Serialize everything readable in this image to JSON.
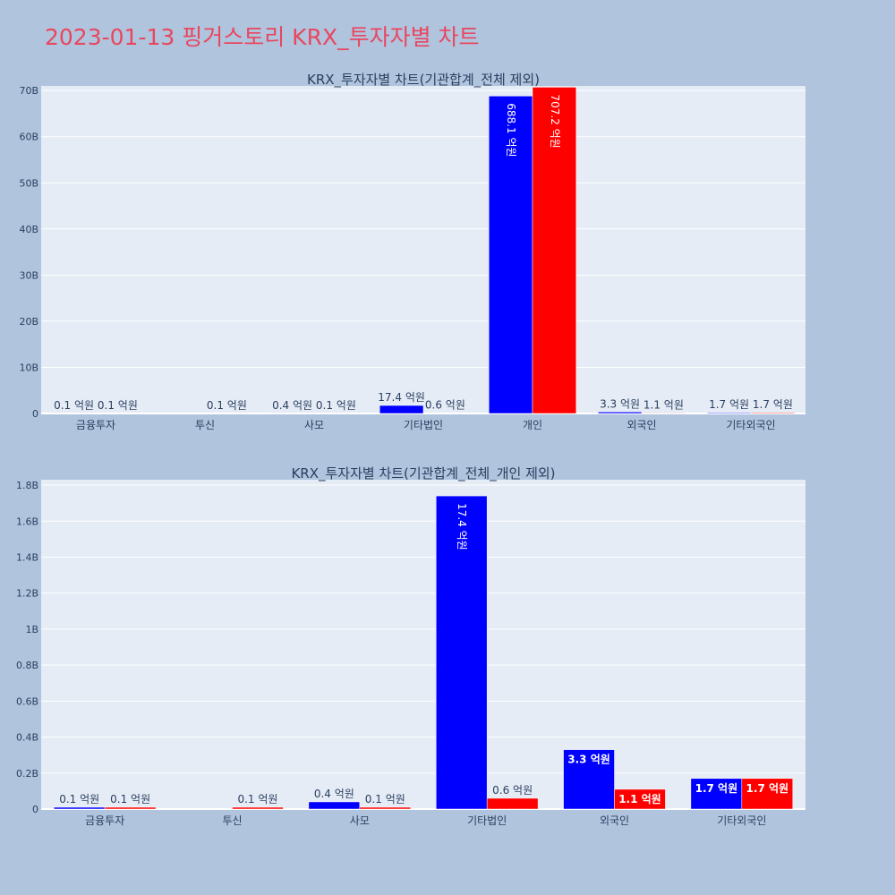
{
  "page": {
    "title": "2023-01-13 핑거스토리 KRX_투자자별 차트"
  },
  "colors": {
    "buy": "#0000ff",
    "sell": "#ff0000",
    "plot_bg": "#e5ecf6",
    "page_bg": "#b0c4de",
    "title": "#e8475f"
  },
  "chart_data": [
    {
      "type": "bar",
      "title": "KRX_투자자별 차트(기관합계_전체 제외)",
      "categories": [
        "금융투자",
        "투신",
        "사모",
        "기타법인",
        "개인",
        "외국인",
        "기타외국인"
      ],
      "series": [
        {
          "color": "#0000ff",
          "values": [
            10000000,
            0,
            40000000,
            1740000000,
            68810000000,
            330000000,
            170000000
          ],
          "labels": [
            "0.1 억원",
            "",
            "0.4 억원",
            "17.4 억원",
            "688.1 억원",
            "3.3 억원",
            "1.7 억원"
          ]
        },
        {
          "color": "#ff0000",
          "values": [
            10000000,
            10000000,
            10000000,
            60000000,
            70720000000,
            110000000,
            170000000
          ],
          "labels": [
            "0.1 억원",
            "0.1 억원",
            "0.1 억원",
            "0.6 억원",
            "707.2 억원",
            "1.1 억원",
            "1.7 억원"
          ]
        }
      ],
      "ylim": [
        0,
        71000000000
      ],
      "yticks": [
        0,
        10000000000,
        20000000000,
        30000000000,
        40000000000,
        50000000000,
        60000000000,
        70000000000
      ],
      "yticklabels": [
        "0",
        "10B",
        "20B",
        "30B",
        "40B",
        "50B",
        "60B",
        "70B"
      ],
      "grid": true
    },
    {
      "type": "bar",
      "title": "KRX_투자자별 차트(기관합계_전체_개인 제외)",
      "categories": [
        "금융투자",
        "투신",
        "사모",
        "기타법인",
        "외국인",
        "기타외국인"
      ],
      "series": [
        {
          "color": "#0000ff",
          "values": [
            10000000,
            0,
            40000000,
            1740000000,
            330000000,
            170000000
          ],
          "labels": [
            "0.1 억원",
            "",
            "0.4 억원",
            "17.4 억원",
            "3.3 억원",
            "1.7 억원"
          ]
        },
        {
          "color": "#ff0000",
          "values": [
            10000000,
            10000000,
            10000000,
            60000000,
            110000000,
            170000000
          ],
          "labels": [
            "0.1 억원",
            "0.1 억원",
            "0.1 억원",
            "0.6 억원",
            "1.1 억원",
            "1.7 억원"
          ]
        }
      ],
      "ylim": [
        0,
        1830000000
      ],
      "yticks": [
        0,
        200000000,
        400000000,
        600000000,
        800000000,
        1000000000,
        1200000000,
        1400000000,
        1600000000,
        1800000000
      ],
      "yticklabels": [
        "0",
        "0.2B",
        "0.4B",
        "0.6B",
        "0.8B",
        "1B",
        "1.2B",
        "1.4B",
        "1.6B",
        "1.8B"
      ],
      "grid": true
    }
  ]
}
